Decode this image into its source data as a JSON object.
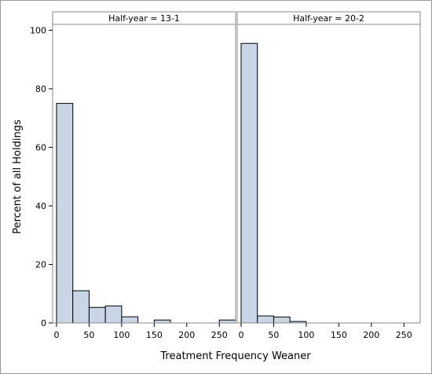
{
  "chart_data": {
    "type": "bar",
    "subtype": "histogram-panel",
    "xlabel": "Treatment Frequency Weaner",
    "ylabel": "Percent of all Holdings",
    "ylim": [
      0,
      102
    ],
    "yticks": [
      0,
      20,
      40,
      60,
      80,
      100
    ],
    "xlim": [
      -6,
      275
    ],
    "xticks": [
      0,
      50,
      100,
      150,
      200,
      250
    ],
    "bin_width": 25,
    "bar_fill": "#c9d6e6",
    "bar_stroke": "#000000",
    "frame_color": "#888888",
    "panels": [
      {
        "title": "Half-year = 13-1",
        "bins": [
          {
            "x0": 0,
            "x1": 25,
            "value": 75.0
          },
          {
            "x0": 25,
            "x1": 50,
            "value": 11.0
          },
          {
            "x0": 50,
            "x1": 75,
            "value": 5.3
          },
          {
            "x0": 75,
            "x1": 100,
            "value": 5.8
          },
          {
            "x0": 100,
            "x1": 125,
            "value": 2.1
          },
          {
            "x0": 125,
            "x1": 150,
            "value": 0
          },
          {
            "x0": 150,
            "x1": 175,
            "value": 1.0
          },
          {
            "x0": 175,
            "x1": 200,
            "value": 0
          },
          {
            "x0": 200,
            "x1": 225,
            "value": 0
          },
          {
            "x0": 225,
            "x1": 250,
            "value": 0
          },
          {
            "x0": 250,
            "x1": 275,
            "value": 1.0
          }
        ]
      },
      {
        "title": "Half-year = 20-2",
        "bins": [
          {
            "x0": 0,
            "x1": 25,
            "value": 95.5
          },
          {
            "x0": 25,
            "x1": 50,
            "value": 2.4
          },
          {
            "x0": 50,
            "x1": 75,
            "value": 2.0
          },
          {
            "x0": 75,
            "x1": 100,
            "value": 0.5
          },
          {
            "x0": 100,
            "x1": 125,
            "value": 0
          },
          {
            "x0": 125,
            "x1": 150,
            "value": 0
          },
          {
            "x0": 150,
            "x1": 175,
            "value": 0
          },
          {
            "x0": 175,
            "x1": 200,
            "value": 0
          },
          {
            "x0": 200,
            "x1": 225,
            "value": 0
          },
          {
            "x0": 225,
            "x1": 250,
            "value": 0
          },
          {
            "x0": 250,
            "x1": 275,
            "value": 0
          }
        ]
      }
    ]
  }
}
